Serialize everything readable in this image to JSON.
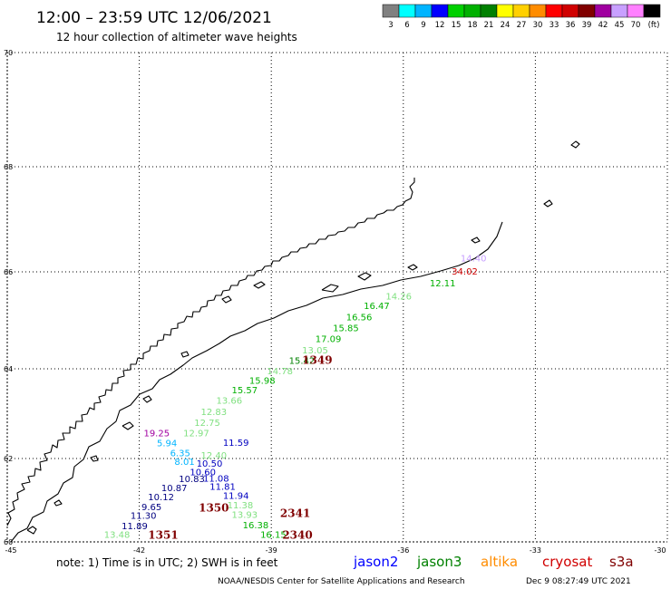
{
  "header": {
    "title": "12:00 – 23:59 UTC 12/06/2021",
    "subtitle": "12 hour collection of altimeter wave heights"
  },
  "colorbar": {
    "colors": [
      "#808080",
      "#00ffff",
      "#00b4ff",
      "#0000ff",
      "#00d000",
      "#00b000",
      "#008000",
      "#ffff00",
      "#ffd000",
      "#ff8c00",
      "#ff0000",
      "#d00000",
      "#800000",
      "#a000a0",
      "#c8a0ff",
      "#ff80ff",
      "#000000"
    ],
    "labels": [
      "3",
      "6",
      "9",
      "12",
      "15",
      "18",
      "21",
      "24",
      "27",
      "30",
      "33",
      "36",
      "39",
      "42",
      "45",
      "70",
      "(ft)"
    ]
  },
  "map": {
    "lat_ticks": [
      "70",
      "68",
      "66",
      "64",
      "62",
      "60"
    ],
    "lon_ticks": [
      "-45",
      "-42",
      "-39",
      "-36",
      "-33",
      "-30"
    ],
    "observations": [
      {
        "lon": -34.7,
        "lat": 66.2,
        "text": "14.40",
        "color": "#c8a0ff"
      },
      {
        "lon": -34.9,
        "lat": 65.94,
        "text": "34.02",
        "color": "#d00000"
      },
      {
        "lon": -35.4,
        "lat": 65.7,
        "text": "12.11",
        "color": "#00b000"
      },
      {
        "lon": -36.4,
        "lat": 65.43,
        "text": "14.26",
        "color": "#80e080"
      },
      {
        "lon": -36.9,
        "lat": 65.23,
        "text": "16.47",
        "color": "#00b000"
      },
      {
        "lon": -37.3,
        "lat": 65.0,
        "text": "16.56",
        "color": "#00b000"
      },
      {
        "lon": -37.6,
        "lat": 64.78,
        "text": "15.85",
        "color": "#00b000"
      },
      {
        "lon": -38.0,
        "lat": 64.55,
        "text": "17.09",
        "color": "#00b000"
      },
      {
        "lon": -38.3,
        "lat": 64.32,
        "text": "13.05",
        "color": "#80e080"
      },
      {
        "lon": -38.6,
        "lat": 64.1,
        "text": "15.42",
        "color": "#008000"
      },
      {
        "lon": -39.1,
        "lat": 63.88,
        "text": "14.78",
        "color": "#80e080"
      },
      {
        "lon": -39.5,
        "lat": 63.67,
        "text": "15.98",
        "color": "#00b000"
      },
      {
        "lon": -39.9,
        "lat": 63.45,
        "text": "15.57",
        "color": "#00b000"
      },
      {
        "lon": -40.25,
        "lat": 63.22,
        "text": "13.66",
        "color": "#80e080"
      },
      {
        "lon": -40.6,
        "lat": 62.97,
        "text": "12.83",
        "color": "#80e080"
      },
      {
        "lon": -40.75,
        "lat": 62.73,
        "text": "12.75",
        "color": "#80e080"
      },
      {
        "lon": -41.0,
        "lat": 62.5,
        "text": "12.97",
        "color": "#80e080"
      },
      {
        "lon": -41.9,
        "lat": 62.49,
        "text": "19.25",
        "color": "#a000a0"
      },
      {
        "lon": -41.6,
        "lat": 62.27,
        "text": "5.94",
        "color": "#00b4ff"
      },
      {
        "lon": -40.1,
        "lat": 62.28,
        "text": "11.59",
        "color": "#0000c0"
      },
      {
        "lon": -41.3,
        "lat": 62.05,
        "text": "6.35",
        "color": "#00b4ff"
      },
      {
        "lon": -40.6,
        "lat": 62.0,
        "text": "12.40",
        "color": "#80e080"
      },
      {
        "lon": -41.2,
        "lat": 61.85,
        "text": "8.01",
        "color": "#00b4ff"
      },
      {
        "lon": -40.7,
        "lat": 61.8,
        "text": "10.50",
        "color": "#0000c0"
      },
      {
        "lon": -40.85,
        "lat": 61.6,
        "text": "10.60",
        "color": "#0000c0"
      },
      {
        "lon": -40.55,
        "lat": 61.45,
        "text": "11.08",
        "color": "#0000c0"
      },
      {
        "lon": -41.1,
        "lat": 61.43,
        "text": "10.83",
        "color": "#000080"
      },
      {
        "lon": -41.5,
        "lat": 61.22,
        "text": "10.87",
        "color": "#000080"
      },
      {
        "lon": -40.4,
        "lat": 61.25,
        "text": "11.81",
        "color": "#0000c0"
      },
      {
        "lon": -41.8,
        "lat": 61.0,
        "text": "10.12",
        "color": "#000080"
      },
      {
        "lon": -40.1,
        "lat": 61.03,
        "text": "11.94",
        "color": "#0000c0"
      },
      {
        "lon": -41.95,
        "lat": 60.76,
        "text": "9.65",
        "color": "#000080"
      },
      {
        "lon": -40.0,
        "lat": 60.8,
        "text": "11.38",
        "color": "#80e080"
      },
      {
        "lon": -42.2,
        "lat": 60.55,
        "text": "11.30",
        "color": "#000080"
      },
      {
        "lon": -39.9,
        "lat": 60.58,
        "text": "13.93",
        "color": "#80e080"
      },
      {
        "lon": -42.4,
        "lat": 60.3,
        "text": "11.89",
        "color": "#000080"
      },
      {
        "lon": -39.65,
        "lat": 60.33,
        "text": "16.38",
        "color": "#00b000"
      },
      {
        "lon": -42.8,
        "lat": 60.1,
        "text": "13.48",
        "color": "#80e080"
      },
      {
        "lon": -39.25,
        "lat": 60.1,
        "text": "16.15",
        "color": "#00b000"
      }
    ],
    "pass_labels": [
      {
        "lon": -38.3,
        "lat": 64.1,
        "text": "1349",
        "color": "#800000"
      },
      {
        "lon": -40.65,
        "lat": 60.73,
        "text": "1350",
        "color": "#800000"
      },
      {
        "lon": -38.8,
        "lat": 60.6,
        "text": "2341",
        "color": "#800000"
      },
      {
        "lon": -41.8,
        "lat": 60.08,
        "text": "1351",
        "color": "#800000"
      },
      {
        "lon": -38.75,
        "lat": 60.08,
        "text": "2340",
        "color": "#800000"
      }
    ]
  },
  "footer": {
    "note": "note:  1) Time is in UTC;  2) SWH is in feet",
    "satellites": [
      {
        "name": "jason2",
        "color": "#0000ff"
      },
      {
        "name": "jason3",
        "color": "#008000"
      },
      {
        "name": "altika",
        "color": "#ff8c00"
      },
      {
        "name": "cryosat",
        "color": "#d00000"
      },
      {
        "name": "s3a",
        "color": "#800000"
      }
    ],
    "credit": "NOAA/NESDIS Center for Satellite Applications and Research",
    "timestamp": "Dec  9 08:27:49 UTC 2021"
  }
}
